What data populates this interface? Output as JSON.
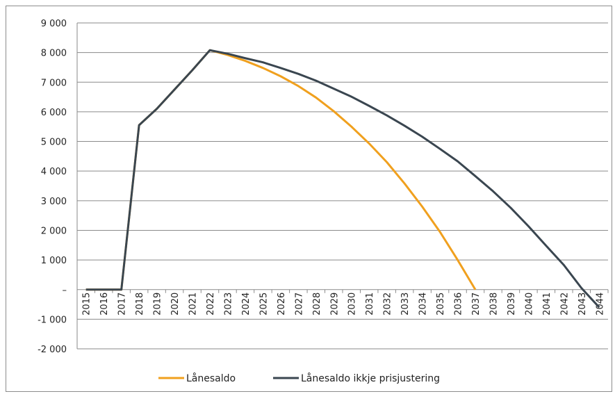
{
  "chart_data": {
    "type": "line",
    "title": "",
    "xlabel": "",
    "ylabel": "",
    "ylim": [
      -2000,
      9000
    ],
    "y_ticks": [
      {
        "value": 9000,
        "label": "9 000"
      },
      {
        "value": 8000,
        "label": "8 000"
      },
      {
        "value": 7000,
        "label": "7 000"
      },
      {
        "value": 6000,
        "label": "6 000"
      },
      {
        "value": 5000,
        "label": "5 000"
      },
      {
        "value": 4000,
        "label": "4 000"
      },
      {
        "value": 3000,
        "label": "3 000"
      },
      {
        "value": 2000,
        "label": "2 000"
      },
      {
        "value": 1000,
        "label": "1 000"
      },
      {
        "value": 0,
        "label": "–"
      },
      {
        "value": -1000,
        "label": "-1 000"
      },
      {
        "value": -2000,
        "label": "-2 000"
      }
    ],
    "categories": [
      "2015",
      "2016",
      "2017",
      "2018",
      "2019",
      "2020",
      "2021",
      "2022",
      "2023",
      "2024",
      "2025",
      "2026",
      "2027",
      "2028",
      "2029",
      "2030",
      "2031",
      "2032",
      "2033",
      "2034",
      "2035",
      "2036",
      "2037",
      "2038",
      "2039",
      "2040",
      "2041",
      "2042",
      "2043",
      "2044"
    ],
    "grid": true,
    "legend_position": "bottom",
    "series": [
      {
        "name": "Lånesaldo",
        "color": "#f0a01e",
        "values": [
          0,
          0,
          0,
          5550,
          6100,
          6750,
          7400,
          8080,
          7920,
          7720,
          7480,
          7200,
          6870,
          6480,
          6020,
          5500,
          4930,
          4300,
          3580,
          2800,
          1950,
          1000,
          0,
          null,
          null,
          null,
          null,
          null,
          null,
          null
        ]
      },
      {
        "name": "Lånesaldo ikkje prisjustering",
        "color": "#3a4650",
        "values": [
          0,
          0,
          0,
          5550,
          6100,
          6750,
          7400,
          8080,
          7960,
          7810,
          7670,
          7480,
          7280,
          7050,
          6780,
          6510,
          6200,
          5880,
          5530,
          5160,
          4750,
          4330,
          3830,
          3320,
          2760,
          2140,
          1480,
          830,
          50,
          -600
        ]
      }
    ]
  }
}
